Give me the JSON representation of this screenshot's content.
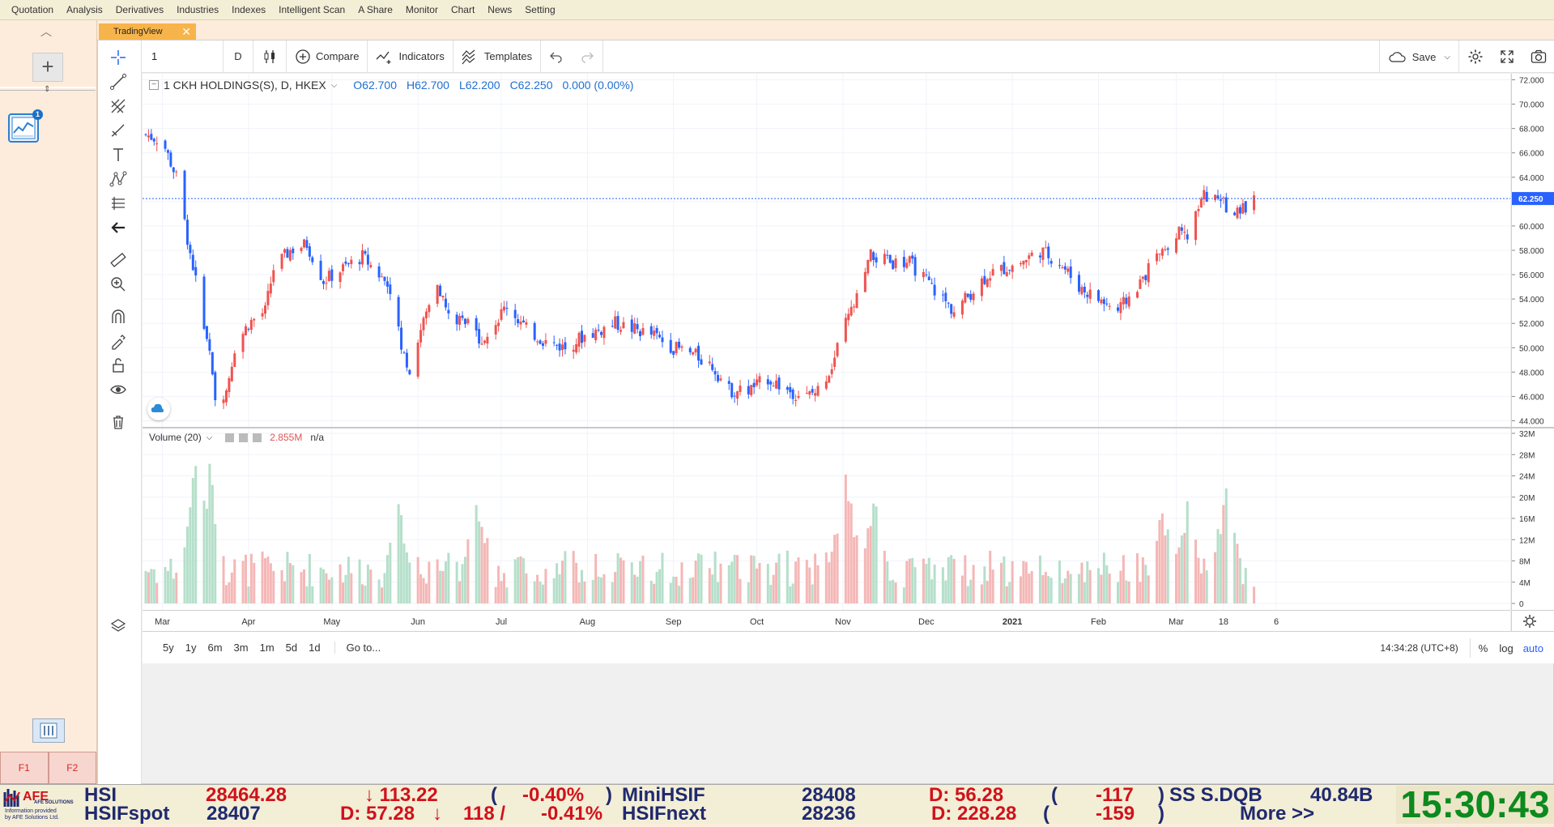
{
  "menu": [
    "Quotation",
    "Analysis",
    "Derivatives",
    "Industries",
    "Indexes",
    "Intelligent Scan",
    "A Share",
    "Monitor",
    "Chart",
    "News",
    "Setting"
  ],
  "tab": {
    "label": "TradingView"
  },
  "toolbar": {
    "symbol_value": "1",
    "interval": "D",
    "compare_label": "Compare",
    "indicators_label": "Indicators",
    "templates_label": "Templates",
    "save_label": "Save"
  },
  "legend": {
    "symbol_text": "1 CKH HOLDINGS(S), D, HKEX",
    "open": "O62.700",
    "high": "H62.700",
    "low": "L62.200",
    "close": "C62.250",
    "change": "0.000 (0.00%)"
  },
  "volume_legend": {
    "label": "Volume (20)",
    "value": "2.855M",
    "na": "n/a"
  },
  "price_axis": {
    "ticks": [
      "72.000",
      "70.000",
      "68.000",
      "66.000",
      "64.000",
      "62.000",
      "60.000",
      "58.000",
      "56.000",
      "54.000",
      "52.000",
      "50.000",
      "48.000",
      "46.000",
      "44.000"
    ],
    "last_label": "62.250"
  },
  "volume_axis": {
    "ticks": [
      "32M",
      "28M",
      "24M",
      "20M",
      "16M",
      "12M",
      "8M",
      "4M",
      "0"
    ]
  },
  "time_axis": {
    "labels": [
      "Mar",
      "Apr",
      "May",
      "Jun",
      "Jul",
      "Aug",
      "Sep",
      "Oct",
      "Nov",
      "Dec",
      "2021",
      "Feb",
      "Mar",
      "18",
      "6"
    ]
  },
  "bottom": {
    "ranges": [
      "5y",
      "1y",
      "6m",
      "3m",
      "1m",
      "5d",
      "1d"
    ],
    "goto": "Go to...",
    "time": "14:34:28 (UTC+8)",
    "pct": "%",
    "log": "log",
    "auto": "auto"
  },
  "fkeys": [
    "F1",
    "F2"
  ],
  "ticker": {
    "logo_text": "AFE SOLUTIONS",
    "logo_sub1": "Information provided",
    "logo_sub2": "by AFE Solutions Ltd.",
    "row1": [
      {
        "text": "HSI",
        "color": "navy"
      },
      {
        "text": "28464.28",
        "color": "red"
      },
      {
        "text": "↓ 113.22",
        "color": "red"
      },
      {
        "text": "(",
        "color": "navy"
      },
      {
        "text": "-0.40%",
        "color": "red"
      },
      {
        "text": ")",
        "color": "navy"
      },
      {
        "text": "MiniHSIF",
        "color": "navy"
      },
      {
        "text": "28408",
        "color": "navy"
      },
      {
        "text": "D: 56.28",
        "color": "red"
      },
      {
        "text": "(",
        "color": "navy"
      },
      {
        "text": "-117",
        "color": "red"
      },
      {
        "text": ")",
        "color": "navy"
      },
      {
        "text": "SS S.DQB",
        "color": "navy"
      },
      {
        "text": "40.84B",
        "color": "navy"
      }
    ],
    "row2": [
      {
        "text": "HSIFspot",
        "color": "navy"
      },
      {
        "text": "28407",
        "color": "navy"
      },
      {
        "text": "D: 57.28",
        "color": "red"
      },
      {
        "text": "↓",
        "color": "red"
      },
      {
        "text": "118 /",
        "color": "red"
      },
      {
        "text": "-0.41%",
        "color": "red"
      },
      {
        "text": "HSIFnext",
        "color": "navy"
      },
      {
        "text": "28236",
        "color": "navy"
      },
      {
        "text": "D: 228.28",
        "color": "red"
      },
      {
        "text": "(",
        "color": "navy"
      },
      {
        "text": "-159",
        "color": "red"
      },
      {
        "text": ")",
        "color": "navy"
      },
      {
        "text": "More >>",
        "color": "navy"
      }
    ],
    "clock": "15:30:43"
  },
  "colors": {
    "up": "#ef5350",
    "down": "#2962ff",
    "vol_up": "#f4b7b6",
    "vol_down": "#b5dfca",
    "accent": "#2962ff"
  },
  "chart_data": {
    "type": "candlestick",
    "title": "1 CKH HOLDINGS(S), D, HKEX",
    "ylim": [
      43.5,
      72.5
    ],
    "volume_ylim": [
      0,
      32
    ],
    "volume_unit": "M",
    "last_price": 62.25,
    "anchors_close": [
      [
        "2020-02-24",
        67.5
      ],
      [
        "2020-03-01",
        67.0
      ],
      [
        "2020-03-06",
        64.0
      ],
      [
        "2020-03-10",
        59.0
      ],
      [
        "2020-03-13",
        55.5
      ],
      [
        "2020-03-17",
        51.0
      ],
      [
        "2020-03-20",
        45.5
      ],
      [
        "2020-03-24",
        46.5
      ],
      [
        "2020-03-27",
        50.0
      ],
      [
        "2020-04-01",
        52.0
      ],
      [
        "2020-04-07",
        53.0
      ],
      [
        "2020-04-10",
        56.5
      ],
      [
        "2020-04-16",
        58.0
      ],
      [
        "2020-04-22",
        58.5
      ],
      [
        "2020-04-28",
        55.5
      ],
      [
        "2020-05-05",
        56.5
      ],
      [
        "2020-05-12",
        57.5
      ],
      [
        "2020-05-18",
        56.0
      ],
      [
        "2020-05-22",
        55.0
      ],
      [
        "2020-05-26",
        50.0
      ],
      [
        "2020-05-29",
        48.0
      ],
      [
        "2020-06-02",
        51.5
      ],
      [
        "2020-06-08",
        55.5
      ],
      [
        "2020-06-12",
        52.5
      ],
      [
        "2020-06-18",
        52.0
      ],
      [
        "2020-06-25",
        50.5
      ],
      [
        "2020-06-30",
        52.5
      ],
      [
        "2020-07-03",
        53.5
      ],
      [
        "2020-07-10",
        51.5
      ],
      [
        "2020-07-17",
        50.5
      ],
      [
        "2020-07-24",
        50.0
      ],
      [
        "2020-07-31",
        51.0
      ],
      [
        "2020-08-06",
        51.5
      ],
      [
        "2020-08-11",
        52.0
      ],
      [
        "2020-08-18",
        51.5
      ],
      [
        "2020-08-25",
        51.0
      ],
      [
        "2020-09-01",
        50.0
      ],
      [
        "2020-09-08",
        49.5
      ],
      [
        "2020-09-15",
        48.5
      ],
      [
        "2020-09-21",
        46.5
      ],
      [
        "2020-09-28",
        46.5
      ],
      [
        "2020-10-05",
        47.5
      ],
      [
        "2020-10-12",
        46.5
      ],
      [
        "2020-10-19",
        46.0
      ],
      [
        "2020-10-23",
        46.5
      ],
      [
        "2020-10-28",
        48.5
      ],
      [
        "2020-11-02",
        52.0
      ],
      [
        "2020-11-06",
        54.0
      ],
      [
        "2020-11-11",
        57.5
      ],
      [
        "2020-11-18",
        57.0
      ],
      [
        "2020-11-25",
        57.0
      ],
      [
        "2020-12-01",
        55.5
      ],
      [
        "2020-12-07",
        54.0
      ],
      [
        "2020-12-11",
        53.0
      ],
      [
        "2020-12-17",
        54.5
      ],
      [
        "2020-12-23",
        56.0
      ],
      [
        "2021-01-04",
        57.0
      ],
      [
        "2021-01-11",
        58.0
      ],
      [
        "2021-01-18",
        57.0
      ],
      [
        "2021-01-25",
        55.0
      ],
      [
        "2021-02-01",
        54.0
      ],
      [
        "2021-02-08",
        53.0
      ],
      [
        "2021-02-15",
        55.0
      ],
      [
        "2021-02-22",
        57.5
      ],
      [
        "2021-03-01",
        59.5
      ],
      [
        "2021-03-05",
        59.0
      ],
      [
        "2021-03-11",
        62.5
      ],
      [
        "2021-03-17",
        62.0
      ],
      [
        "2021-03-23",
        61.0
      ],
      [
        "2021-03-29",
        62.25
      ]
    ],
    "volume_peaks_m": [
      [
        "2020-03-13",
        29
      ],
      [
        "2020-03-18",
        28
      ],
      [
        "2020-05-25",
        21
      ],
      [
        "2020-06-22",
        25
      ],
      [
        "2020-11-02",
        27
      ],
      [
        "2020-11-12",
        22
      ],
      [
        "2021-02-24",
        19
      ],
      [
        "2021-03-05",
        20
      ],
      [
        "2021-03-19",
        24
      ]
    ]
  }
}
